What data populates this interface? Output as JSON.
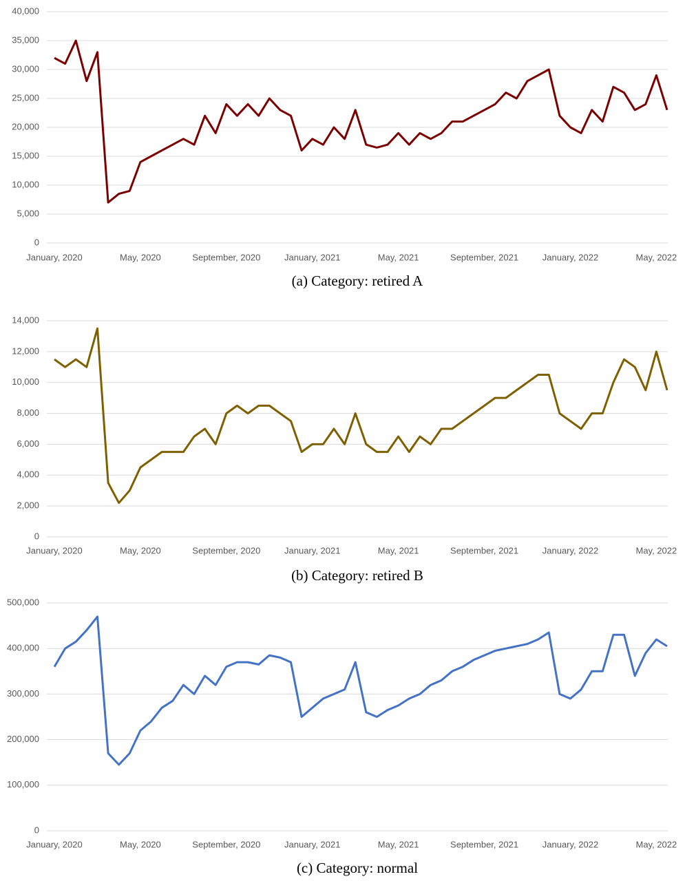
{
  "chart_data": [
    {
      "type": "line",
      "caption": "(a) Category: retired A",
      "color": "#7b0000",
      "categories": [
        "January, 2020",
        null,
        null,
        null,
        null,
        null,
        null,
        null,
        "May, 2020",
        null,
        null,
        null,
        null,
        null,
        null,
        null,
        "September, 2020",
        null,
        null,
        null,
        null,
        null,
        null,
        null,
        "January, 2021",
        null,
        null,
        null,
        null,
        null,
        null,
        null,
        "May, 2021",
        null,
        null,
        null,
        null,
        null,
        null,
        null,
        "September, 2021",
        null,
        null,
        null,
        null,
        null,
        null,
        null,
        "January, 2022",
        null,
        null,
        null,
        null,
        null,
        null,
        null,
        "May, 2022",
        null
      ],
      "values": [
        32000,
        31000,
        35000,
        28000,
        33000,
        7000,
        8500,
        9000,
        14000,
        15000,
        16000,
        17000,
        18000,
        17000,
        22000,
        19000,
        24000,
        22000,
        24000,
        22000,
        25000,
        23000,
        22000,
        16000,
        18000,
        17000,
        20000,
        18000,
        23000,
        17000,
        16500,
        17000,
        19000,
        17000,
        19000,
        18000,
        19000,
        21000,
        21000,
        22000,
        23000,
        24000,
        26000,
        25000,
        28000,
        29000,
        30000,
        22000,
        20000,
        19000,
        23000,
        21000,
        27000,
        26000,
        23000,
        24000,
        29000,
        23000
      ],
      "ylim": [
        0,
        40000
      ],
      "yticks": [
        0,
        {
          "value": 5000,
          "label": "5,000"
        },
        {
          "value": 10000,
          "label": "10,000"
        },
        {
          "value": 15000,
          "label": "15,000"
        },
        {
          "value": 20000,
          "label": "20,000"
        },
        {
          "value": 25000,
          "label": "25,000"
        },
        {
          "value": 30000,
          "label": "30,000"
        },
        {
          "value": 35000,
          "label": "35,000"
        },
        {
          "value": 40000,
          "label": "40,000"
        }
      ],
      "grid": true
    },
    {
      "type": "line",
      "caption": "(b) Category: retired B",
      "color": "#7f6000",
      "categories": [
        "January, 2020",
        null,
        null,
        null,
        null,
        null,
        null,
        null,
        "May, 2020",
        null,
        null,
        null,
        null,
        null,
        null,
        null,
        "September, 2020",
        null,
        null,
        null,
        null,
        null,
        null,
        null,
        "January, 2021",
        null,
        null,
        null,
        null,
        null,
        null,
        null,
        "May, 2021",
        null,
        null,
        null,
        null,
        null,
        null,
        null,
        "September, 2021",
        null,
        null,
        null,
        null,
        null,
        null,
        null,
        "January, 2022",
        null,
        null,
        null,
        null,
        null,
        null,
        null,
        "May, 2022",
        null
      ],
      "values": [
        11500,
        11000,
        11500,
        11000,
        13500,
        3500,
        2200,
        3000,
        4500,
        5000,
        5500,
        5500,
        5500,
        6500,
        7000,
        6000,
        8000,
        8500,
        8000,
        8500,
        8500,
        8000,
        7500,
        5500,
        6000,
        6000,
        7000,
        6000,
        8000,
        6000,
        5500,
        5500,
        6500,
        5500,
        6500,
        6000,
        7000,
        7000,
        7500,
        8000,
        8500,
        9000,
        9000,
        9500,
        10000,
        10500,
        10500,
        8000,
        7500,
        7000,
        8000,
        8000,
        10000,
        11500,
        11000,
        9500,
        12000,
        9500
      ],
      "ylim": [
        0,
        14000
      ],
      "yticks": [
        0,
        {
          "value": 2000,
          "label": "2,000"
        },
        {
          "value": 4000,
          "label": "4,000"
        },
        {
          "value": 6000,
          "label": "6,000"
        },
        {
          "value": 8000,
          "label": "8,000"
        },
        {
          "value": 10000,
          "label": "10,000"
        },
        {
          "value": 12000,
          "label": "12,000"
        },
        {
          "value": 14000,
          "label": "14,000"
        }
      ],
      "grid": true
    },
    {
      "type": "line",
      "caption": "(c) Category: normal",
      "color": "#4472c4",
      "categories": [
        "January, 2020",
        null,
        null,
        null,
        null,
        null,
        null,
        null,
        "May, 2020",
        null,
        null,
        null,
        null,
        null,
        null,
        null,
        "September, 2020",
        null,
        null,
        null,
        null,
        null,
        null,
        null,
        "January, 2021",
        null,
        null,
        null,
        null,
        null,
        null,
        null,
        "May, 2021",
        null,
        null,
        null,
        null,
        null,
        null,
        null,
        "September, 2021",
        null,
        null,
        null,
        null,
        null,
        null,
        null,
        "January, 2022",
        null,
        null,
        null,
        null,
        null,
        null,
        null,
        "May, 2022",
        null
      ],
      "values": [
        360000,
        400000,
        415000,
        440000,
        470000,
        170000,
        145000,
        170000,
        220000,
        240000,
        270000,
        285000,
        320000,
        300000,
        340000,
        320000,
        360000,
        370000,
        370000,
        365000,
        385000,
        380000,
        370000,
        250000,
        270000,
        290000,
        300000,
        310000,
        370000,
        260000,
        250000,
        265000,
        275000,
        290000,
        300000,
        320000,
        330000,
        350000,
        360000,
        375000,
        385000,
        395000,
        400000,
        405000,
        410000,
        420000,
        435000,
        300000,
        290000,
        310000,
        350000,
        350000,
        430000,
        430000,
        340000,
        390000,
        420000,
        405000
      ],
      "ylim": [
        0,
        500000
      ],
      "yticks": [
        0,
        {
          "value": 100000,
          "label": "100,000"
        },
        {
          "value": 200000,
          "label": "200,000"
        },
        {
          "value": 300000,
          "label": "300,000"
        },
        {
          "value": 400000,
          "label": "400,000"
        },
        {
          "value": 500000,
          "label": "500,000"
        }
      ],
      "grid": true
    }
  ]
}
